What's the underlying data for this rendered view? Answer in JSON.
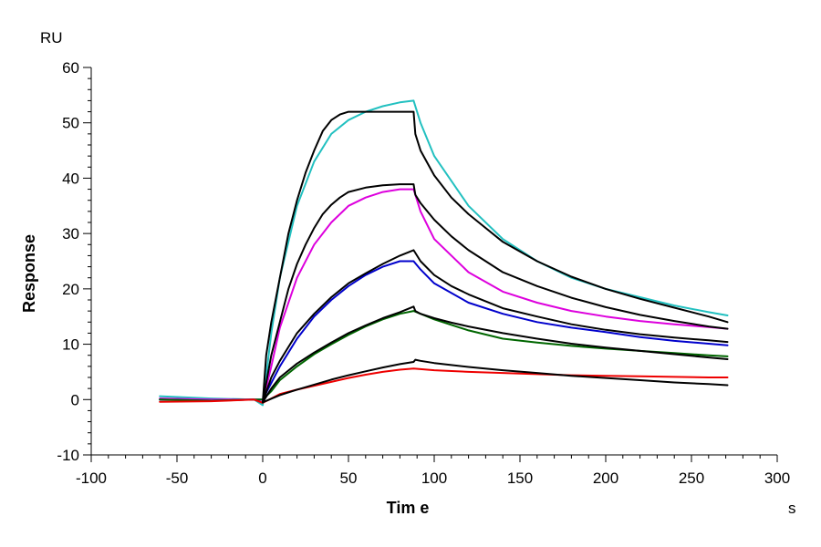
{
  "chart_data": {
    "type": "line",
    "title": "",
    "xlabel": "Tim e",
    "ylabel": "Response",
    "x_unit": "s",
    "y_unit": "RU",
    "xlim": [
      -100,
      300
    ],
    "ylim": [
      -10,
      60
    ],
    "x_ticks": [
      -100,
      -50,
      0,
      50,
      100,
      150,
      200,
      250,
      300
    ],
    "y_ticks": [
      -10,
      0,
      10,
      20,
      30,
      40,
      50,
      60
    ],
    "x_tick_labels": [
      "-100",
      "-50",
      "0",
      "50",
      "100",
      "150",
      "200",
      "250",
      "300"
    ],
    "y_tick_labels": [
      "-10",
      "0",
      "10",
      "20",
      "30",
      "40",
      "50",
      "60"
    ],
    "grid": false,
    "legend": "none",
    "series": [
      {
        "color": "#22c0c0",
        "kind": "measured",
        "x": [
          -60,
          -30,
          -5,
          0,
          5,
          10,
          20,
          30,
          40,
          50,
          60,
          70,
          80,
          88,
          92,
          100,
          120,
          140,
          160,
          180,
          200,
          220,
          240,
          260,
          271
        ],
        "y": [
          0.6,
          0.2,
          0,
          -1,
          12,
          22,
          35,
          43,
          48,
          50.5,
          52,
          53,
          53.7,
          54,
          50,
          44,
          35,
          29,
          25,
          22,
          20,
          18.5,
          17,
          15.8,
          15.2
        ]
      },
      {
        "color": "#dd00dd",
        "kind": "measured",
        "x": [
          -60,
          -30,
          -5,
          0,
          5,
          10,
          20,
          30,
          40,
          50,
          60,
          70,
          80,
          88,
          92,
          100,
          120,
          140,
          160,
          180,
          200,
          220,
          240,
          260,
          271
        ],
        "y": [
          0.2,
          0,
          0,
          -0.5,
          6,
          13,
          22,
          28,
          32,
          35,
          36.5,
          37.5,
          38,
          38,
          34,
          29,
          23,
          19.5,
          17.5,
          16,
          15,
          14.2,
          13.6,
          13.1,
          12.8
        ]
      },
      {
        "color": "#0000cc",
        "kind": "measured",
        "x": [
          -60,
          -30,
          -5,
          0,
          5,
          10,
          20,
          30,
          40,
          50,
          60,
          70,
          80,
          88,
          92,
          100,
          120,
          140,
          160,
          180,
          200,
          220,
          240,
          260,
          271
        ],
        "y": [
          0,
          -0.2,
          0,
          0,
          3,
          6,
          11,
          15,
          18,
          20.5,
          22.5,
          24,
          25,
          25,
          23.5,
          21,
          17.5,
          15.5,
          14,
          13,
          12.2,
          11.3,
          10.6,
          10.1,
          9.8
        ]
      },
      {
        "color": "#006600",
        "kind": "measured",
        "x": [
          -60,
          -30,
          -5,
          0,
          5,
          10,
          20,
          30,
          40,
          50,
          60,
          70,
          80,
          88,
          92,
          100,
          120,
          140,
          160,
          180,
          200,
          220,
          240,
          260,
          271
        ],
        "y": [
          0,
          -0.2,
          0,
          0,
          1.5,
          3.5,
          6,
          8.2,
          10,
          11.7,
          13.2,
          14.5,
          15.5,
          16,
          15.5,
          14.5,
          12.5,
          11,
          10.3,
          9.7,
          9.2,
          8.8,
          8.4,
          8,
          7.8
        ]
      },
      {
        "color": "#ee0000",
        "kind": "measured",
        "x": [
          -60,
          -30,
          -5,
          0,
          5,
          10,
          20,
          30,
          40,
          50,
          60,
          70,
          80,
          88,
          92,
          100,
          120,
          140,
          160,
          180,
          200,
          220,
          240,
          260,
          271
        ],
        "y": [
          -0.4,
          -0.3,
          0,
          -0.6,
          0.2,
          1,
          1.8,
          2.5,
          3.2,
          3.9,
          4.5,
          5,
          5.4,
          5.6,
          5.5,
          5.3,
          5,
          4.8,
          4.6,
          4.4,
          4.3,
          4.2,
          4.1,
          4,
          4
        ]
      },
      {
        "color": "#000000",
        "kind": "fit",
        "x": [
          0,
          2,
          5,
          10,
          15,
          20,
          25,
          30,
          35,
          40,
          45,
          50,
          60,
          70,
          80,
          88,
          89,
          92,
          100,
          110,
          120,
          140,
          160,
          180,
          200,
          220,
          240,
          260,
          271
        ],
        "y": [
          -0.5,
          8,
          14,
          22,
          30,
          36,
          41,
          45,
          48.5,
          50.5,
          51.5,
          52,
          52,
          52,
          52,
          52,
          48,
          45,
          40.5,
          36.5,
          33.5,
          28.5,
          25,
          22.2,
          20,
          18.2,
          16.6,
          15,
          14
        ]
      },
      {
        "color": "#000000",
        "kind": "fit",
        "x": [
          0,
          2,
          5,
          10,
          15,
          20,
          25,
          30,
          35,
          40,
          45,
          50,
          60,
          70,
          80,
          88,
          89,
          92,
          100,
          110,
          120,
          140,
          160,
          180,
          200,
          220,
          240,
          260,
          271
        ],
        "y": [
          -0.5,
          3,
          8,
          14,
          20,
          24.5,
          28,
          31,
          33.5,
          35.2,
          36.5,
          37.5,
          38.3,
          38.7,
          38.9,
          38.9,
          37,
          35.5,
          32.5,
          29.5,
          27,
          23,
          20.5,
          18.4,
          16.7,
          15.3,
          14.2,
          13.2,
          12.8
        ]
      },
      {
        "color": "#000000",
        "kind": "fit",
        "x": [
          0,
          5,
          10,
          20,
          30,
          40,
          50,
          60,
          70,
          80,
          88,
          89,
          92,
          100,
          110,
          120,
          140,
          160,
          180,
          200,
          220,
          240,
          260,
          271
        ],
        "y": [
          -0.5,
          4,
          7,
          12,
          15.5,
          18.5,
          21,
          22.8,
          24.5,
          26,
          27,
          26.5,
          25,
          22.5,
          20.5,
          19,
          16.5,
          15,
          13.6,
          12.6,
          11.8,
          11.2,
          10.7,
          10.4
        ]
      },
      {
        "color": "#000000",
        "kind": "fit",
        "x": [
          0,
          5,
          10,
          20,
          30,
          40,
          50,
          60,
          70,
          80,
          88,
          89,
          92,
          100,
          110,
          120,
          140,
          160,
          180,
          200,
          220,
          240,
          260,
          271
        ],
        "y": [
          -0.5,
          2,
          4,
          6.5,
          8.5,
          10.3,
          12,
          13.4,
          14.7,
          15.8,
          16.8,
          16,
          15.5,
          14.7,
          13.9,
          13.2,
          12,
          11,
          10.1,
          9.4,
          8.8,
          8.2,
          7.6,
          7.3
        ]
      },
      {
        "color": "#000000",
        "kind": "fit",
        "x": [
          0,
          10,
          20,
          30,
          40,
          50,
          60,
          70,
          80,
          88,
          89,
          92,
          100,
          120,
          140,
          160,
          180,
          200,
          220,
          240,
          260,
          271
        ],
        "y": [
          -0.5,
          0.8,
          1.8,
          2.7,
          3.6,
          4.4,
          5.1,
          5.8,
          6.4,
          6.8,
          7.2,
          7,
          6.6,
          5.9,
          5.3,
          4.8,
          4.3,
          3.9,
          3.5,
          3.1,
          2.8,
          2.6
        ]
      }
    ]
  }
}
